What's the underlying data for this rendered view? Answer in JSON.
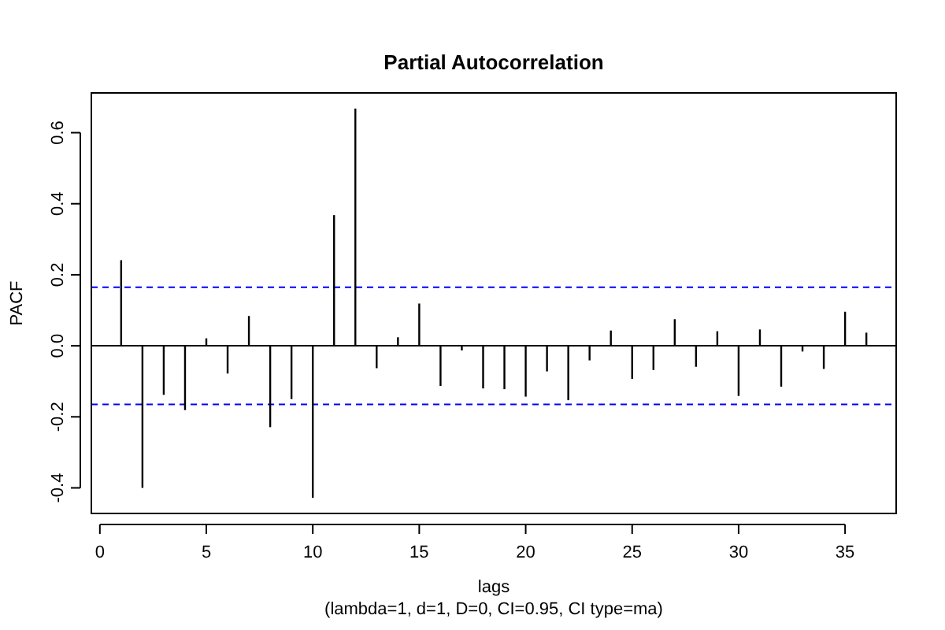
{
  "chart_data": {
    "type": "bar",
    "title": "Partial Autocorrelation",
    "xlabel": "lags",
    "ylabel": "PACF",
    "annotations": [
      "(lambda=1, d=1, D=0, CI=0.95, CI type=ma)"
    ],
    "x": [
      1,
      2,
      3,
      4,
      5,
      6,
      7,
      8,
      9,
      10,
      11,
      12,
      13,
      14,
      15,
      16,
      17,
      18,
      19,
      20,
      21,
      22,
      23,
      24,
      25,
      26,
      27,
      28,
      29,
      30,
      31,
      32,
      33,
      34,
      35,
      36
    ],
    "values": [
      0.241,
      -0.4,
      -0.138,
      -0.181,
      0.021,
      -0.078,
      0.084,
      -0.229,
      -0.15,
      -0.428,
      0.368,
      0.668,
      -0.063,
      0.024,
      0.119,
      -0.113,
      -0.013,
      -0.12,
      -0.122,
      -0.143,
      -0.072,
      -0.153,
      -0.041,
      0.043,
      -0.093,
      -0.068,
      0.075,
      -0.059,
      0.041,
      -0.141,
      0.046,
      -0.115,
      -0.016,
      -0.065,
      0.096,
      0.037
    ],
    "color": "#000000",
    "xlim": [
      -0.4,
      37.4
    ],
    "ylim": [
      -0.472,
      0.712
    ],
    "xticks": [
      0,
      5,
      10,
      15,
      20,
      25,
      30,
      35
    ],
    "yticks": [
      {
        "value": -0.4,
        "label": "-0.4"
      },
      {
        "value": -0.2,
        "label": "-0.2"
      },
      {
        "value": 0,
        "label": "0.0"
      },
      {
        "value": 0.2,
        "label": "0.2"
      },
      {
        "value": 0.4,
        "label": "0.4"
      },
      {
        "value": 0.6,
        "label": "0.6"
      }
    ],
    "ref_lines": [
      {
        "axis": "y",
        "value": 0.165,
        "color": "#0000ff",
        "line_style": "dashed"
      },
      {
        "axis": "y",
        "value": -0.165,
        "color": "#0000ff",
        "line_style": "dashed"
      },
      {
        "axis": "y",
        "value": 0,
        "color": "#000000",
        "line_style": "solid"
      }
    ],
    "grid": false
  }
}
